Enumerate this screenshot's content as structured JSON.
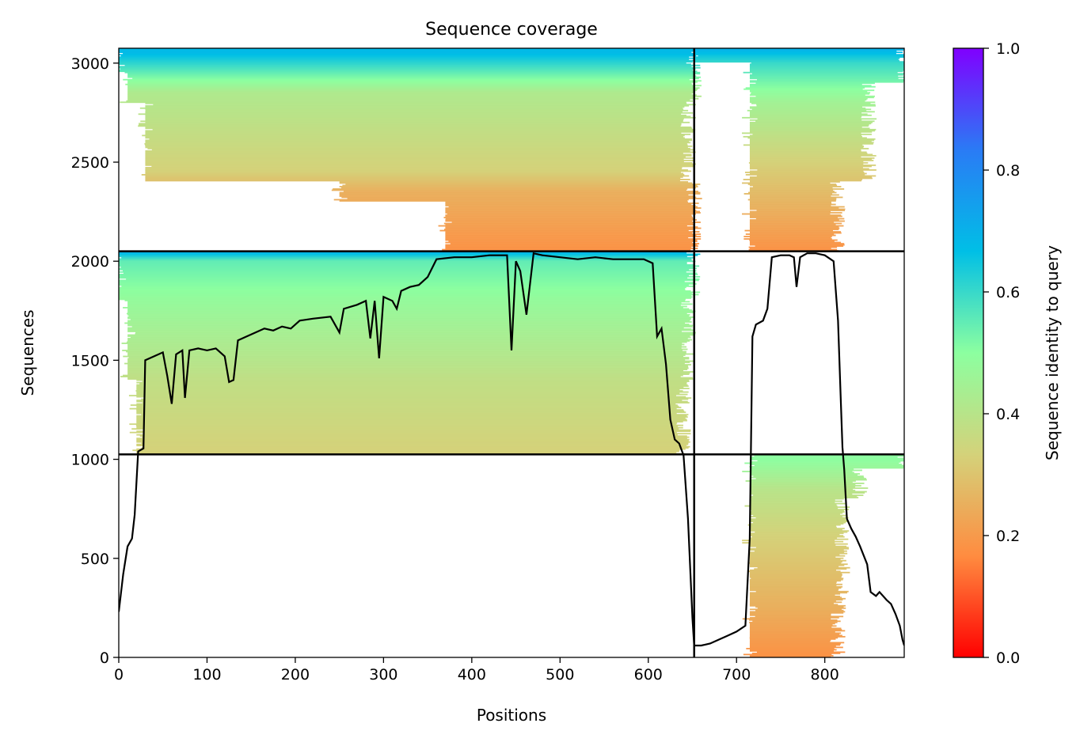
{
  "chart_data": {
    "type": "heatmap",
    "title": "Sequence coverage",
    "xlabel": "Positions",
    "ylabel": "Sequences",
    "xlim": [
      0,
      890
    ],
    "ylim": [
      0,
      3075
    ],
    "x_ticks": [
      0,
      100,
      200,
      300,
      400,
      500,
      600,
      700,
      800
    ],
    "y_ticks": [
      0,
      500,
      1000,
      1500,
      2000,
      2500,
      3000
    ],
    "grid": false,
    "colorbar": {
      "label": "Sequence identity to query",
      "range": [
        0,
        1
      ],
      "ticks": [
        0.0,
        0.2,
        0.4,
        0.6,
        0.8,
        1.0
      ],
      "tick_labels": [
        "0.0",
        "0.2",
        "0.4",
        "0.6",
        "0.8",
        "1.0"
      ],
      "colormap": [
        "#ff0000",
        "#ff8c40",
        "#d4d27a",
        "#8cffa0",
        "#00bfe6",
        "#2a7bf5",
        "#8000ff"
      ]
    },
    "divider_x": 652,
    "divider_y": [
      1025,
      2050
    ],
    "coverage_line": [
      [
        0,
        230
      ],
      [
        5,
        420
      ],
      [
        10,
        560
      ],
      [
        15,
        600
      ],
      [
        18,
        720
      ],
      [
        22,
        1040
      ],
      [
        28,
        1055
      ],
      [
        30,
        1500
      ],
      [
        40,
        1520
      ],
      [
        50,
        1540
      ],
      [
        55,
        1420
      ],
      [
        60,
        1280
      ],
      [
        65,
        1530
      ],
      [
        72,
        1550
      ],
      [
        75,
        1310
      ],
      [
        80,
        1550
      ],
      [
        90,
        1560
      ],
      [
        100,
        1550
      ],
      [
        110,
        1560
      ],
      [
        120,
        1520
      ],
      [
        125,
        1390
      ],
      [
        130,
        1400
      ],
      [
        135,
        1600
      ],
      [
        145,
        1620
      ],
      [
        155,
        1640
      ],
      [
        165,
        1660
      ],
      [
        175,
        1650
      ],
      [
        185,
        1670
      ],
      [
        195,
        1660
      ],
      [
        205,
        1700
      ],
      [
        220,
        1710
      ],
      [
        240,
        1720
      ],
      [
        250,
        1640
      ],
      [
        255,
        1760
      ],
      [
        270,
        1780
      ],
      [
        280,
        1800
      ],
      [
        285,
        1610
      ],
      [
        290,
        1800
      ],
      [
        295,
        1510
      ],
      [
        300,
        1820
      ],
      [
        310,
        1800
      ],
      [
        315,
        1760
      ],
      [
        320,
        1850
      ],
      [
        330,
        1870
      ],
      [
        340,
        1880
      ],
      [
        350,
        1920
      ],
      [
        360,
        2010
      ],
      [
        380,
        2020
      ],
      [
        400,
        2020
      ],
      [
        420,
        2030
      ],
      [
        440,
        2030
      ],
      [
        445,
        1550
      ],
      [
        450,
        2000
      ],
      [
        455,
        1950
      ],
      [
        462,
        1730
      ],
      [
        470,
        2040
      ],
      [
        480,
        2030
      ],
      [
        500,
        2020
      ],
      [
        520,
        2010
      ],
      [
        540,
        2020
      ],
      [
        560,
        2010
      ],
      [
        580,
        2010
      ],
      [
        595,
        2010
      ],
      [
        605,
        1990
      ],
      [
        610,
        1620
      ],
      [
        615,
        1660
      ],
      [
        620,
        1480
      ],
      [
        625,
        1200
      ],
      [
        630,
        1100
      ],
      [
        635,
        1080
      ],
      [
        640,
        1020
      ],
      [
        645,
        700
      ],
      [
        650,
        200
      ],
      [
        652,
        60
      ],
      [
        660,
        60
      ],
      [
        670,
        70
      ],
      [
        680,
        90
      ],
      [
        690,
        110
      ],
      [
        700,
        130
      ],
      [
        710,
        160
      ],
      [
        715,
        600
      ],
      [
        718,
        1620
      ],
      [
        722,
        1680
      ],
      [
        730,
        1700
      ],
      [
        735,
        1760
      ],
      [
        740,
        2020
      ],
      [
        750,
        2030
      ],
      [
        760,
        2030
      ],
      [
        765,
        2020
      ],
      [
        768,
        1870
      ],
      [
        772,
        2020
      ],
      [
        780,
        2040
      ],
      [
        790,
        2040
      ],
      [
        800,
        2030
      ],
      [
        810,
        2000
      ],
      [
        815,
        1700
      ],
      [
        818,
        1320
      ],
      [
        820,
        1060
      ],
      [
        822,
        950
      ],
      [
        825,
        700
      ],
      [
        830,
        650
      ],
      [
        835,
        610
      ],
      [
        840,
        560
      ],
      [
        848,
        470
      ],
      [
        852,
        330
      ],
      [
        858,
        310
      ],
      [
        862,
        330
      ],
      [
        870,
        290
      ],
      [
        875,
        270
      ],
      [
        880,
        220
      ],
      [
        885,
        160
      ],
      [
        888,
        90
      ],
      [
        890,
        60
      ]
    ],
    "blocks": [
      {
        "y0": 2050,
        "y1": 3075,
        "rows": [
          [
            2050,
            370,
            652
          ],
          [
            2300,
            250,
            652
          ],
          [
            2400,
            30,
            645
          ],
          [
            2800,
            10,
            652
          ],
          [
            2950,
            0,
            652
          ]
        ],
        "identity": [
          [
            2050,
            0.18
          ],
          [
            2350,
            0.25
          ],
          [
            2450,
            0.33
          ],
          [
            2850,
            0.42
          ],
          [
            2950,
            0.55
          ],
          [
            3050,
            0.68
          ]
        ]
      },
      {
        "y0": 1025,
        "y1": 2050,
        "rows": [
          [
            1025,
            20,
            640
          ],
          [
            1400,
            10,
            645
          ],
          [
            1800,
            0,
            650
          ]
        ],
        "identity": [
          [
            1025,
            0.33
          ],
          [
            1400,
            0.38
          ],
          [
            1800,
            0.48
          ],
          [
            2000,
            0.55
          ],
          [
            2045,
            0.7
          ]
        ]
      },
      {
        "x0": 652,
        "y0": 2050,
        "y1": 3075,
        "rows": [
          [
            2050,
            715,
            815
          ],
          [
            2400,
            715,
            850
          ],
          [
            2900,
            715,
            890
          ],
          [
            3000,
            652,
            890
          ]
        ],
        "identity": [
          [
            2050,
            0.18
          ],
          [
            2350,
            0.28
          ],
          [
            2550,
            0.35
          ],
          [
            2800,
            0.45
          ],
          [
            3000,
            0.6
          ],
          [
            3070,
            0.7
          ]
        ]
      },
      {
        "x0": 652,
        "y0": 0,
        "y1": 1025,
        "rows": [
          [
            0,
            715,
            815
          ],
          [
            300,
            715,
            820
          ],
          [
            800,
            715,
            840
          ],
          [
            950,
            715,
            890
          ]
        ],
        "identity": [
          [
            0,
            0.18
          ],
          [
            250,
            0.25
          ],
          [
            600,
            0.33
          ],
          [
            850,
            0.4
          ],
          [
            1000,
            0.5
          ]
        ]
      }
    ]
  }
}
